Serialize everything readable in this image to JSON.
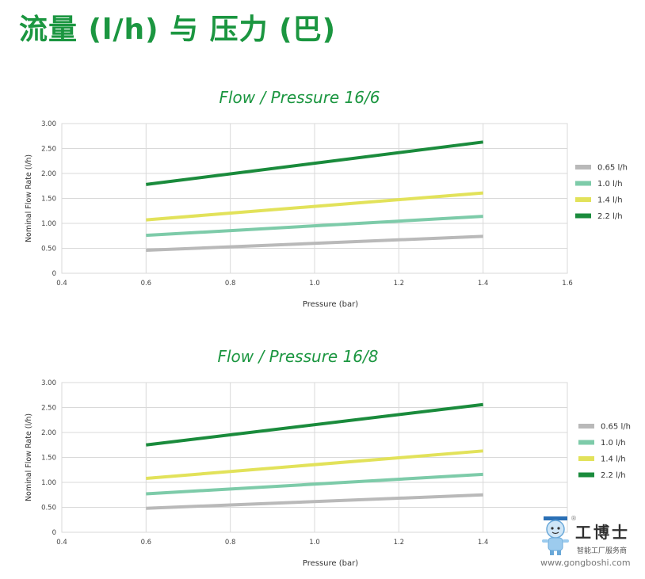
{
  "page_title": "流量 (l/h) 与 压力 (巴)",
  "watermark": {
    "name": "工博士",
    "slogan": "智能工厂服务商",
    "url": "www.gongboshi.com",
    "registered_mark": "®"
  },
  "chart_data": [
    {
      "type": "line",
      "title": "Flow / Pressure 16/6",
      "xlabel": "Pressure (bar)",
      "ylabel": "Nominal Flow Rate (l/h)",
      "xlim": [
        0.4,
        1.6
      ],
      "ylim": [
        0,
        3.0
      ],
      "x_ticks": [
        "0.4",
        "0.6",
        "0.8",
        "1.0",
        "1.2",
        "1.4",
        "1.6"
      ],
      "y_ticks": [
        "0",
        "0.50",
        "1.00",
        "1.50",
        "2.00",
        "2.50",
        "3.00"
      ],
      "grid": true,
      "legend_position": "right",
      "series": [
        {
          "name": "0.65 l/h",
          "color": "#b9b9b9",
          "x": [
            0.6,
            1.4
          ],
          "y": [
            0.46,
            0.74
          ]
        },
        {
          "name": "1.0 l/h",
          "color": "#7dcba9",
          "x": [
            0.6,
            1.4
          ],
          "y": [
            0.76,
            1.14
          ]
        },
        {
          "name": "1.4 l/h",
          "color": "#e2e25a",
          "x": [
            0.6,
            1.4
          ],
          "y": [
            1.07,
            1.61
          ]
        },
        {
          "name": "2.2 l/h",
          "color": "#1a8b3c",
          "x": [
            0.6,
            1.4
          ],
          "y": [
            1.78,
            2.63
          ]
        }
      ]
    },
    {
      "type": "line",
      "title": "Flow / Pressure 16/8",
      "xlabel": "Pressure (bar)",
      "ylabel": "Nominal Flow Rate (l/h)",
      "xlim": [
        0.4,
        1.6
      ],
      "ylim": [
        0,
        3.0
      ],
      "x_ticks": [
        "0.4",
        "0.6",
        "0.8",
        "1.0",
        "1.2",
        "1.4"
      ],
      "y_ticks": [
        "0",
        "0.50",
        "1.00",
        "1.50",
        "2.00",
        "2.50",
        "3.00"
      ],
      "grid": true,
      "legend_position": "right",
      "series": [
        {
          "name": "0.65 l/h",
          "color": "#b9b9b9",
          "x": [
            0.6,
            1.4
          ],
          "y": [
            0.48,
            0.75
          ]
        },
        {
          "name": "1.0 l/h",
          "color": "#7dcba9",
          "x": [
            0.6,
            1.4
          ],
          "y": [
            0.77,
            1.16
          ]
        },
        {
          "name": "1.4 l/h",
          "color": "#e2e25a",
          "x": [
            0.6,
            1.4
          ],
          "y": [
            1.08,
            1.63
          ]
        },
        {
          "name": "2.2 l/h",
          "color": "#1a8b3c",
          "x": [
            0.6,
            1.4
          ],
          "y": [
            1.75,
            2.56
          ]
        }
      ]
    }
  ]
}
